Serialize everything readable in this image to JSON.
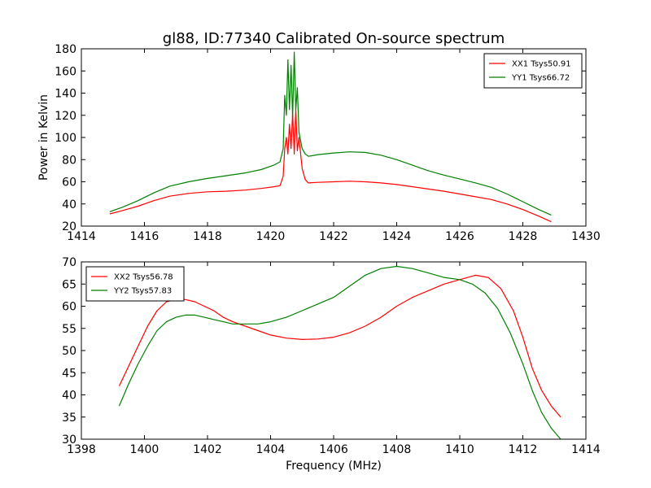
{
  "chart_data": [
    {
      "type": "line",
      "title": "gl88, ID:77340 Calibrated On-source spectrum",
      "xlabel": "",
      "ylabel": "Power in Kelvin",
      "xlim": [
        1414,
        1430
      ],
      "ylim": [
        20,
        180
      ],
      "xticks": [
        1414,
        1416,
        1418,
        1420,
        1422,
        1424,
        1426,
        1428,
        1430
      ],
      "yticks": [
        20,
        40,
        60,
        80,
        100,
        120,
        140,
        160,
        180
      ],
      "grid": false,
      "legend": "top-right",
      "series": [
        {
          "name": "XX1 Tsys50.91",
          "color": "#ff0000",
          "x": [
            1414.9,
            1415.3,
            1415.8,
            1416.3,
            1416.8,
            1417.4,
            1418.0,
            1418.6,
            1419.2,
            1419.7,
            1420.1,
            1420.3,
            1420.4,
            1420.45,
            1420.5,
            1420.55,
            1420.6,
            1420.65,
            1420.7,
            1420.75,
            1420.8,
            1420.85,
            1420.9,
            1421.0,
            1421.1,
            1421.2,
            1421.5,
            1422.0,
            1422.5,
            1423.0,
            1423.5,
            1424.0,
            1424.5,
            1425.0,
            1425.5,
            1426.0,
            1426.5,
            1427.0,
            1427.5,
            1428.0,
            1428.5,
            1428.9
          ],
          "y": [
            31,
            34,
            38,
            43,
            47,
            49.5,
            51,
            51.5,
            52.5,
            54,
            55.5,
            56.5,
            65,
            90,
            100,
            85,
            112,
            90,
            122,
            85,
            125,
            88,
            100,
            72,
            62,
            59,
            59.5,
            60,
            60.5,
            60,
            59,
            57.5,
            55.5,
            53.5,
            51.5,
            49,
            46.5,
            44,
            40,
            35,
            29,
            24
          ]
        },
        {
          "name": "YY1 Tsys66.72",
          "color": "#008000",
          "x": [
            1414.9,
            1415.3,
            1415.8,
            1416.3,
            1416.8,
            1417.4,
            1418.0,
            1418.6,
            1419.2,
            1419.7,
            1420.1,
            1420.3,
            1420.4,
            1420.45,
            1420.5,
            1420.55,
            1420.6,
            1420.65,
            1420.7,
            1420.75,
            1420.8,
            1420.85,
            1420.9,
            1421.0,
            1421.1,
            1421.2,
            1421.5,
            1422.0,
            1422.5,
            1423.0,
            1423.5,
            1424.0,
            1424.5,
            1425.0,
            1425.5,
            1426.0,
            1426.5,
            1427.0,
            1427.5,
            1428.0,
            1428.5,
            1428.9
          ],
          "y": [
            33,
            37,
            43,
            50,
            56,
            60,
            63,
            65.5,
            68,
            71,
            75,
            78,
            90,
            138,
            120,
            170,
            125,
            165,
            118,
            177,
            125,
            145,
            105,
            90,
            85,
            83,
            84.5,
            86,
            87,
            86.5,
            84,
            80,
            75,
            70,
            66,
            62.5,
            59,
            55,
            49,
            42,
            35,
            30
          ]
        }
      ]
    },
    {
      "type": "line",
      "title": "",
      "xlabel": "Frequency (MHz)",
      "ylabel": "",
      "xlim": [
        1398,
        1414
      ],
      "ylim": [
        30,
        70
      ],
      "xticks": [
        1398,
        1400,
        1402,
        1404,
        1406,
        1408,
        1410,
        1412,
        1414
      ],
      "yticks": [
        30,
        35,
        40,
        45,
        50,
        55,
        60,
        65,
        70
      ],
      "grid": false,
      "legend": "top-left",
      "series": [
        {
          "name": "XX2 Tsys56.78",
          "color": "#ff0000",
          "x": [
            1399.2,
            1399.5,
            1399.8,
            1400.1,
            1400.4,
            1400.7,
            1401.0,
            1401.3,
            1401.6,
            1401.9,
            1402.2,
            1402.5,
            1402.8,
            1403.2,
            1403.6,
            1404.0,
            1404.5,
            1405.0,
            1405.5,
            1406.0,
            1406.5,
            1407.0,
            1407.5,
            1408.0,
            1408.5,
            1409.0,
            1409.5,
            1410.0,
            1410.5,
            1410.9,
            1411.3,
            1411.7,
            1412.0,
            1412.3,
            1412.6,
            1412.9,
            1413.2
          ],
          "y": [
            42,
            46.5,
            51,
            55.5,
            59,
            61,
            61.5,
            61.5,
            61,
            60,
            59,
            57.5,
            56.5,
            55.5,
            54.5,
            53.5,
            52.8,
            52.5,
            52.6,
            53,
            54,
            55.5,
            57.5,
            60,
            62,
            63.5,
            65,
            66,
            67,
            66.5,
            64,
            59,
            53,
            46,
            41,
            37.5,
            35
          ]
        },
        {
          "name": "YY2 Tsys57.83",
          "color": "#008000",
          "x": [
            1399.2,
            1399.5,
            1399.8,
            1400.1,
            1400.4,
            1400.7,
            1401.0,
            1401.3,
            1401.6,
            1401.9,
            1402.2,
            1402.5,
            1402.8,
            1403.2,
            1403.6,
            1404.0,
            1404.5,
            1405.0,
            1405.5,
            1406.0,
            1406.5,
            1407.0,
            1407.5,
            1408.0,
            1408.5,
            1409.0,
            1409.5,
            1410.0,
            1410.4,
            1410.8,
            1411.2,
            1411.6,
            1412.0,
            1412.3,
            1412.6,
            1412.9,
            1413.2
          ],
          "y": [
            37.5,
            42.5,
            47,
            51,
            54.5,
            56.5,
            57.5,
            58,
            58,
            57.5,
            57,
            56.5,
            56,
            56,
            56,
            56.5,
            57.5,
            59,
            60.5,
            62,
            64.5,
            67,
            68.5,
            69,
            68.5,
            67.5,
            66.5,
            66,
            65,
            63,
            59.5,
            54,
            47,
            41,
            36,
            32.5,
            30
          ]
        }
      ]
    }
  ]
}
